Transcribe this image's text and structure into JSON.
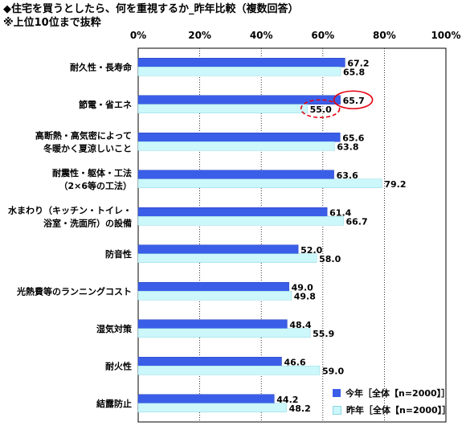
{
  "title_line1": "◆住宅を買うとしたら、何を重視するか_昨年比較（複数回答）",
  "title_line2": "※上位10位まで抜粋",
  "colors": {
    "this_year": "#3b5ee8",
    "last_year": "#ccf7fb",
    "highlight": "#e60012"
  },
  "legend": [
    {
      "label": "今年［全体【n=2000】］"
    },
    {
      "label": "昨年［全体【n=2000】］"
    }
  ],
  "chart_data": {
    "type": "bar",
    "orientation": "horizontal",
    "x_ticks": [
      "0%",
      "20%",
      "40%",
      "60%",
      "80%",
      "100%"
    ],
    "xlim": [
      0,
      100
    ],
    "grid": true,
    "legend_position": "bottom-right",
    "categories": [
      "耐久性・長寿命",
      "節電・省エネ",
      "高断熱・高気密によって\n冬暖かく夏涼しいこと",
      "耐震性・躯体・工法\n（2×6等の工法）",
      "水まわり（キッチン・トイレ・\n浴室・洗面所）の設備",
      "防音性",
      "光熱費等のランニングコスト",
      "湿気対策",
      "耐火性",
      "結露防止"
    ],
    "series": [
      {
        "name": "今年［全体【n=2000】］",
        "values": [
          67.2,
          65.7,
          65.6,
          63.6,
          61.4,
          52.0,
          49.0,
          48.4,
          46.6,
          44.2
        ]
      },
      {
        "name": "昨年［全体【n=2000】］",
        "values": [
          65.8,
          55.0,
          63.8,
          79.2,
          66.7,
          58.0,
          49.8,
          55.9,
          59.0,
          48.2
        ]
      }
    ],
    "data_labels": [
      [
        "67.2",
        "65.7",
        "65.6",
        "63.6",
        "61.4",
        "52.0",
        "49.0",
        "48.4",
        "46.6",
        "44.2"
      ],
      [
        "65.8",
        "55.0",
        "63.8",
        "79.2",
        "66.7",
        "58.0",
        "49.8",
        "55.9",
        "59.0",
        "48.2"
      ]
    ],
    "annotations": [
      {
        "category_index": 1,
        "series_index": 0,
        "style": "solid-ellipse"
      },
      {
        "category_index": 1,
        "series_index": 1,
        "style": "dashed-ellipse"
      }
    ]
  }
}
